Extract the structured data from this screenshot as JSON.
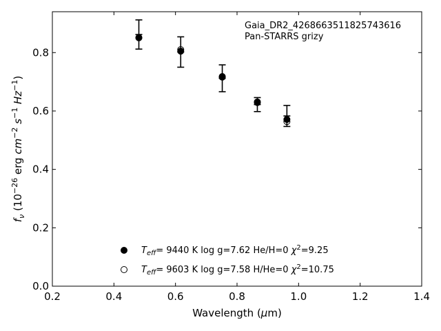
{
  "chart_data": {
    "type": "scatter",
    "xlabel": "Wavelength (μm)",
    "ylabel": "f_ν (10^-26 erg cm^-2 s^-1 Hz^-1)",
    "xlim": [
      0.2,
      1.4
    ],
    "ylim": [
      0.0,
      0.94
    ],
    "xticks": [
      "0.2",
      "0.4",
      "0.6",
      "0.8",
      "1.0",
      "1.2",
      "1.4"
    ],
    "yticks": [
      "0.0",
      "0.2",
      "0.4",
      "0.6",
      "0.8"
    ],
    "grid": false,
    "annotation": [
      "Gaia_DR2_4268663511825743616",
      "Pan-STARRS grizy"
    ],
    "observed": {
      "x": [
        0.481,
        0.617,
        0.752,
        0.866,
        0.962
      ],
      "y": [
        0.862,
        0.802,
        0.712,
        0.622,
        0.583
      ],
      "err": [
        0.05,
        0.052,
        0.046,
        0.024,
        0.036
      ]
    },
    "series": [
      {
        "name": "T_eff= 9440 K  log g=7.62  He/H=0  χ²=9.25",
        "marker": "filled-circle",
        "x": [
          0.481,
          0.617,
          0.752,
          0.866,
          0.962
        ],
        "y": [
          0.851,
          0.805,
          0.718,
          0.629,
          0.571
        ]
      },
      {
        "name": "T_eff= 9603 K  log g=7.58  H/He=0  χ²=10.75",
        "marker": "open-circle",
        "x": [
          0.481,
          0.617,
          0.752,
          0.866,
          0.962
        ],
        "y": [
          0.851,
          0.81,
          0.716,
          0.631,
          0.564
        ]
      }
    ],
    "legend": {
      "placement": "lower-center",
      "entries": [
        {
          "teff": "9440 K",
          "logg": "log g=7.62",
          "comp": "He/H=0",
          "chi": "=9.25"
        },
        {
          "teff": "9603 K",
          "logg": "log g=7.58",
          "comp": "H/He=0",
          "chi": "=10.75"
        }
      ]
    }
  }
}
